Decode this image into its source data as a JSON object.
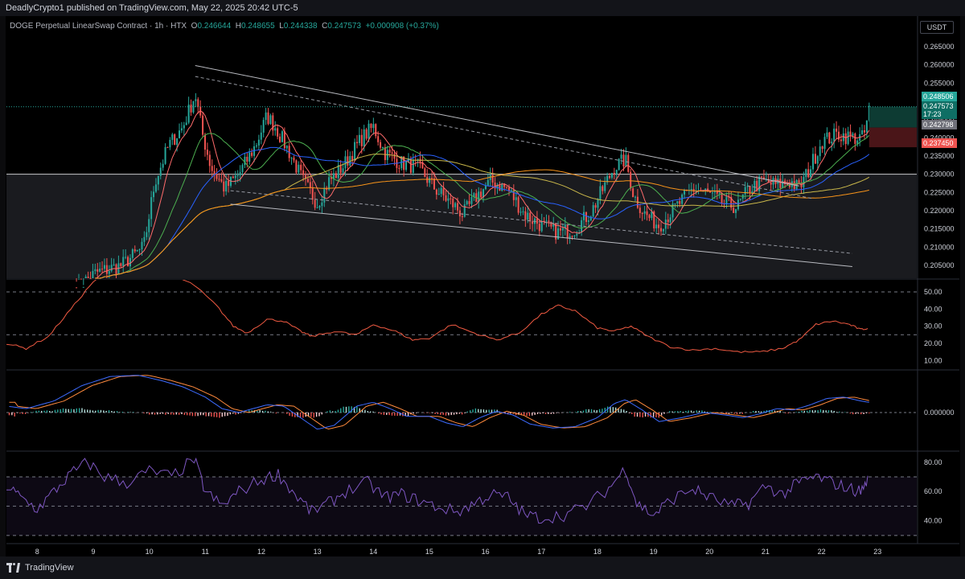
{
  "header": {
    "published": "DeadlyCrypto1 published on TradingView.com, May 22, 2025 20:42 UTC-5"
  },
  "legend": {
    "symbol": "DOGE Perpetual LinearSwap Contract · 1h · HTX",
    "o_key": "O",
    "o_val": "0.246644",
    "h_key": "H",
    "h_val": "0.248655",
    "l_key": "L",
    "l_val": "0.244338",
    "c_key": "C",
    "c_val": "0.247573",
    "change": "+0.000908 (+0.37%)"
  },
  "price_axis": {
    "unit": "USDT"
  },
  "price_tags": {
    "tag1": "0.248506",
    "tag2": "0.247573",
    "countdown": "17:23",
    "tag3": "0.242798",
    "tag4": "0.237450"
  },
  "colors": {
    "up": "#26a69a",
    "down": "#ef5350",
    "blue": "#2962ff",
    "orange": "#f7931a",
    "green_ma": "#4caf50",
    "yellow_ma": "#c9b74a",
    "rsi": "#7e57c2",
    "adx": "#f05a42",
    "macd": "#3d6bff",
    "signal": "#ff8a3d"
  },
  "footer": {
    "logo_text": "TradingView"
  },
  "chart_data": [
    {
      "type": "candlestick",
      "y_ticks": [
        0.205,
        0.21,
        0.215,
        0.22,
        0.225,
        0.23,
        0.235,
        0.24,
        0.245,
        0.25,
        0.255,
        0.26,
        0.265
      ],
      "ylim": [
        0.2015,
        0.2685
      ],
      "x_ticks": [
        "8",
        "9",
        "10",
        "11",
        "12",
        "13",
        "14",
        "15",
        "16",
        "17",
        "18",
        "19",
        "20",
        "21",
        "22",
        "23"
      ],
      "x_range_days": [
        7.45,
        23.7
      ],
      "moving_averages": [
        "red",
        "green",
        "blue",
        "yellow",
        "orange"
      ],
      "trendlines": "descending wedge with dashed midline",
      "horizontal_level": 0.23
    },
    {
      "type": "line",
      "indicator": "ADX",
      "ticks": [
        "50.00",
        "40.00",
        "30.00",
        "20.00",
        "10.00"
      ],
      "ylim": [
        5,
        57
      ],
      "bands": [
        25,
        50
      ]
    },
    {
      "type": "bar",
      "indicator": "MACD",
      "ticks": [
        "0.000000"
      ]
    },
    {
      "type": "line",
      "indicator": "RSI",
      "ticks": [
        "80.00",
        "60.00",
        "40.00"
      ],
      "ylim": [
        25,
        87
      ],
      "bands": [
        30,
        50,
        70
      ]
    }
  ]
}
